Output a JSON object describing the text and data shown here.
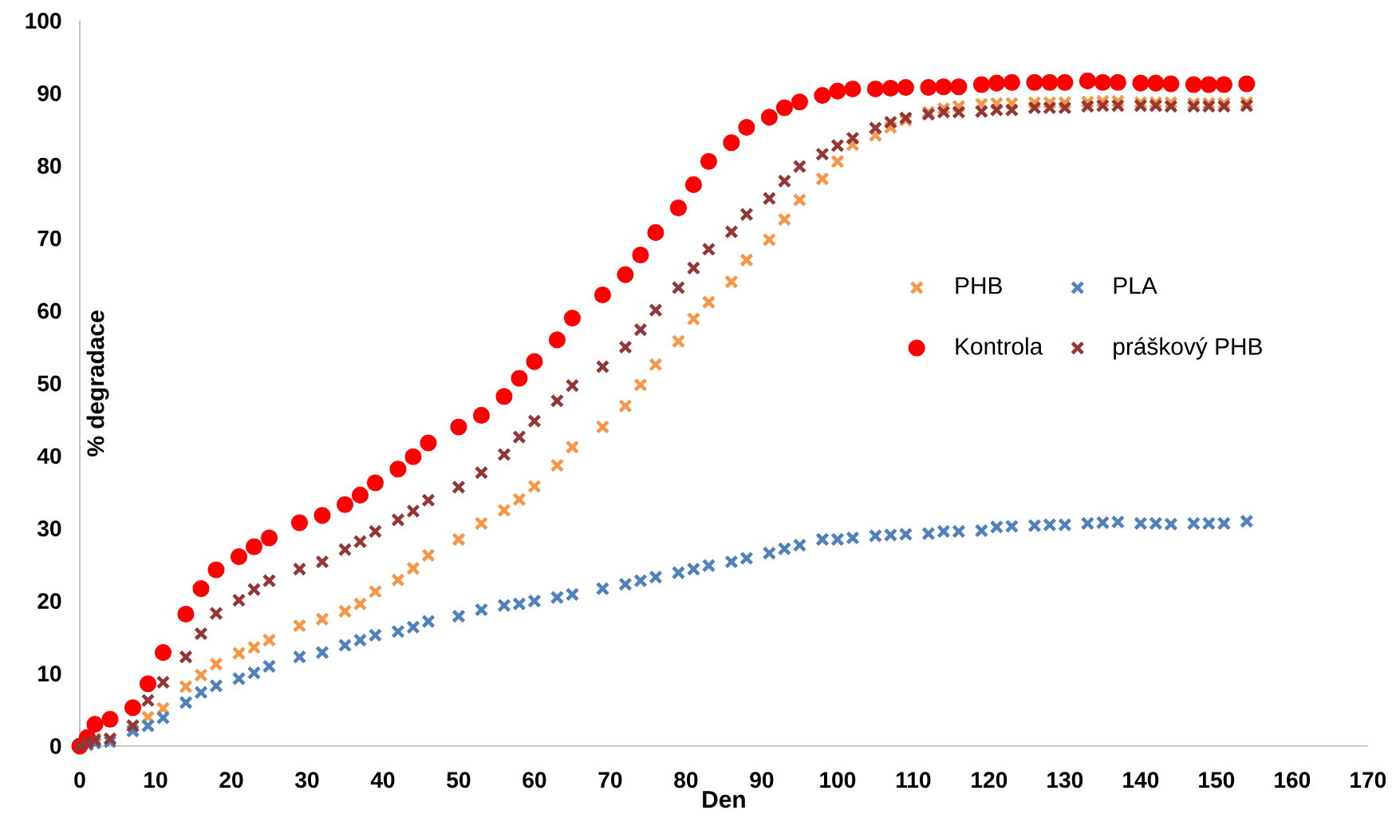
{
  "chart_data": {
    "type": "scatter",
    "xlabel": "Den",
    "ylabel": "% degradace",
    "x": [
      0,
      1,
      2,
      4,
      7,
      9,
      11,
      14,
      16,
      18,
      21,
      23,
      25,
      29,
      32,
      35,
      37,
      39,
      42,
      44,
      46,
      50,
      53,
      56,
      58,
      60,
      63,
      65,
      69,
      72,
      74,
      76,
      79,
      81,
      83,
      86,
      88,
      91,
      93,
      95,
      98,
      100,
      102,
      105,
      107,
      109,
      112,
      114,
      116,
      119,
      121,
      123,
      126,
      128,
      130,
      133,
      135,
      137,
      140,
      142,
      144,
      147,
      149,
      151,
      154
    ],
    "xlim": [
      0,
      170
    ],
    "xticks": [
      0,
      10,
      20,
      30,
      40,
      50,
      60,
      70,
      80,
      90,
      100,
      110,
      120,
      130,
      140,
      150,
      160,
      170
    ],
    "ylim": [
      0,
      100
    ],
    "yticks": [
      0,
      10,
      20,
      30,
      40,
      50,
      60,
      70,
      80,
      90,
      100
    ],
    "legend": "right",
    "series": [
      {
        "name": "PHB",
        "color": "#f79646",
        "marker": "cross",
        "values": [
          null,
          0.4,
          1,
          1,
          2.8,
          4,
          5.2,
          8.2,
          9.8,
          11.3,
          12.8,
          13.6,
          14.6,
          16.6,
          17.5,
          18.6,
          19.6,
          21.3,
          22.9,
          24.5,
          26.3,
          28.5,
          30.7,
          32.5,
          34,
          35.8,
          38.7,
          41.2,
          44,
          46.9,
          49.8,
          52.6,
          55.8,
          58.9,
          61.2,
          64,
          67,
          69.8,
          72.6,
          75.3,
          78.2,
          80.6,
          82.9,
          84.2,
          85.3,
          86.3,
          87.4,
          87.9,
          88.2,
          88.5,
          88.6,
          88.6,
          88.7,
          88.7,
          88.7,
          88.8,
          88.9,
          88.9,
          88.7,
          88.7,
          88.7,
          88.6,
          88.6,
          88.6,
          88.7
        ]
      },
      {
        "name": "PLA",
        "color": "#4f81bd",
        "marker": "cross",
        "values": [
          null,
          0.2,
          0.4,
          0.6,
          2.1,
          2.8,
          3.9,
          6,
          7.4,
          8.3,
          9.3,
          10.1,
          11,
          12.3,
          12.9,
          13.9,
          14.6,
          15.3,
          15.8,
          16.4,
          17.2,
          17.9,
          18.8,
          19.4,
          19.6,
          20,
          20.5,
          20.9,
          21.7,
          22.3,
          22.8,
          23.3,
          23.9,
          24.4,
          24.9,
          25.4,
          25.9,
          26.6,
          27.2,
          27.7,
          28.5,
          28.5,
          28.7,
          29,
          29.1,
          29.2,
          29.3,
          29.6,
          29.6,
          29.7,
          30.2,
          30.3,
          30.4,
          30.5,
          30.5,
          30.7,
          30.8,
          30.9,
          30.7,
          30.7,
          30.6,
          30.7,
          30.7,
          30.7,
          31
        ]
      },
      {
        "name": "Kontrola",
        "color": "#ff0000",
        "marker": "circle",
        "values": [
          0,
          1.2,
          3,
          3.7,
          5.3,
          8.6,
          12.9,
          18.2,
          21.7,
          24.3,
          26.1,
          27.5,
          28.7,
          30.8,
          31.8,
          33.3,
          34.6,
          36.3,
          38.2,
          39.9,
          41.8,
          44,
          45.6,
          48.2,
          50.7,
          53,
          56,
          59,
          62.2,
          65,
          67.7,
          70.8,
          74.2,
          77.4,
          80.6,
          83.2,
          85.3,
          86.7,
          88,
          88.8,
          89.7,
          90.3,
          90.6,
          90.6,
          90.7,
          90.8,
          90.8,
          90.9,
          90.9,
          91.2,
          91.4,
          91.5,
          91.5,
          91.5,
          91.5,
          91.7,
          91.5,
          91.5,
          91.4,
          91.4,
          91.3,
          91.2,
          91.2,
          91.2,
          91.3
        ]
      },
      {
        "name": "práškový PHB",
        "color": "#943634",
        "marker": "cross",
        "values": [
          0,
          0.5,
          0.8,
          1,
          2.8,
          6.3,
          8.8,
          12.3,
          15.5,
          18.3,
          20.1,
          21.6,
          22.8,
          24.4,
          25.4,
          27.1,
          28.2,
          29.6,
          31.2,
          32.4,
          33.9,
          35.7,
          37.7,
          40.2,
          42.6,
          44.8,
          47.6,
          49.7,
          52.3,
          55,
          57.4,
          60.1,
          63.2,
          65.9,
          68.5,
          70.9,
          73.3,
          75.5,
          77.9,
          79.9,
          81.6,
          82.8,
          83.8,
          85.2,
          86,
          86.6,
          87.1,
          87.4,
          87.4,
          87.5,
          87.7,
          87.7,
          88,
          88,
          88,
          88.2,
          88.3,
          88.3,
          88.3,
          88.3,
          88.2,
          88.2,
          88.2,
          88.2,
          88.3
        ]
      }
    ]
  }
}
